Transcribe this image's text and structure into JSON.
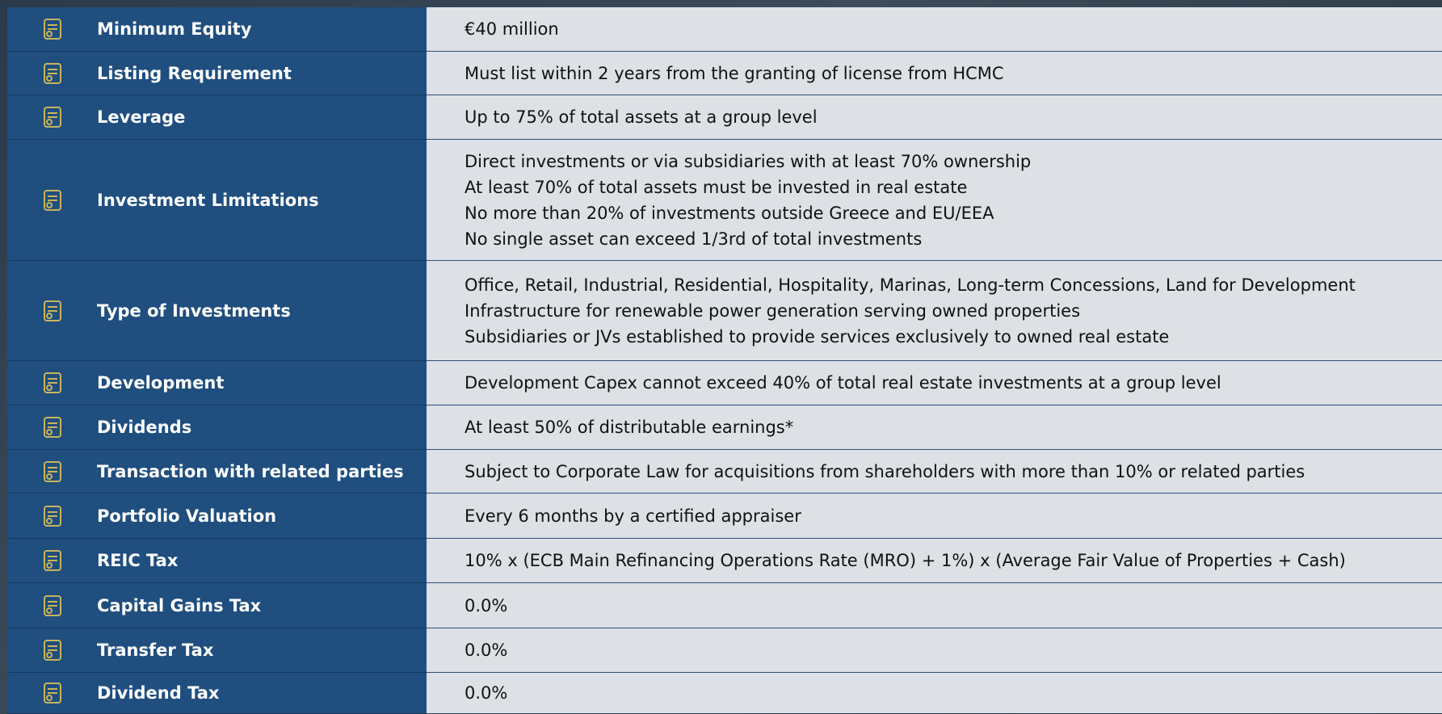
{
  "rows": [
    {
      "label": "Minimum Equity",
      "lines": [
        "€40 million"
      ]
    },
    {
      "label": "Listing Requirement",
      "lines": [
        "Must list within 2 years from the granting of license from HCMC"
      ]
    },
    {
      "label": "Leverage",
      "lines": [
        "Up to 75% of total assets at a group level"
      ]
    },
    {
      "label": "Investment Limitations",
      "lines": [
        "Direct investments or via subsidiaries  with at least 70% ownership",
        "At least 70% of total assets must be invested in real estate",
        "No more than 20% of investments outside Greece and EU/EEA",
        "No single asset can exceed 1/3rd of total investments"
      ]
    },
    {
      "label": "Type of Investments",
      "lines": [
        "Office, Retail, Industrial, Residential, Hospitality, Marinas, Long-term Concessions, Land for Development",
        "Infrastructure for renewable power generation serving owned properties",
        "Subsidiaries or JVs established to provide services exclusively to owned real estate"
      ]
    },
    {
      "label": "Development",
      "lines": [
        "Development Capex cannot exceed 40% of total real estate investments at a group level"
      ]
    },
    {
      "label": "Dividends",
      "lines": [
        "At least 50% of distributable earnings*"
      ]
    },
    {
      "label": "Transaction with related parties",
      "lines": [
        "Subject to Corporate Law for acquisitions from shareholders with more than 10% or related parties"
      ]
    },
    {
      "label": "Portfolio Valuation",
      "lines": [
        "Every 6 months by a certified appraiser"
      ]
    },
    {
      "label": "REIC Tax",
      "lines": [
        "10% x (ECB Main Refinancing Operations Rate (MRO) + 1%) x (Average Fair Value of Properties + Cash)"
      ]
    },
    {
      "label": "Capital Gains Tax",
      "lines": [
        "0.0%"
      ]
    },
    {
      "label": "Transfer Tax",
      "lines": [
        "0.0%"
      ]
    },
    {
      "label": "Dividend  Tax",
      "lines": [
        "0.0%"
      ]
    }
  ]
}
